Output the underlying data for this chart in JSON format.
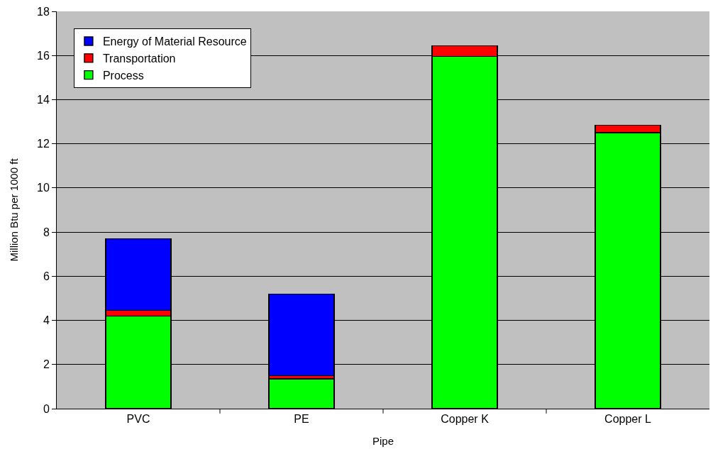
{
  "chart_data": {
    "type": "bar",
    "stacked": true,
    "xlabel": "Pipe",
    "ylabel": "Million Btu per 1000 ft",
    "categories": [
      "PVC",
      "PE",
      "Copper K",
      "Copper L"
    ],
    "series": [
      {
        "name": "Process",
        "color": "#00ff00",
        "values": [
          4.2,
          1.35,
          15.95,
          12.5
        ]
      },
      {
        "name": "Transportation",
        "color": "#ff0000",
        "values": [
          0.25,
          0.15,
          0.5,
          0.35
        ]
      },
      {
        "name": "Energy of Material Resource",
        "color": "#0000ff",
        "values": [
          3.25,
          3.7,
          null,
          null
        ]
      }
    ],
    "ylim": [
      0,
      18
    ],
    "yticks": [
      0,
      2,
      4,
      6,
      8,
      10,
      12,
      14,
      16,
      18
    ],
    "grid": "y",
    "legend": "top left"
  }
}
